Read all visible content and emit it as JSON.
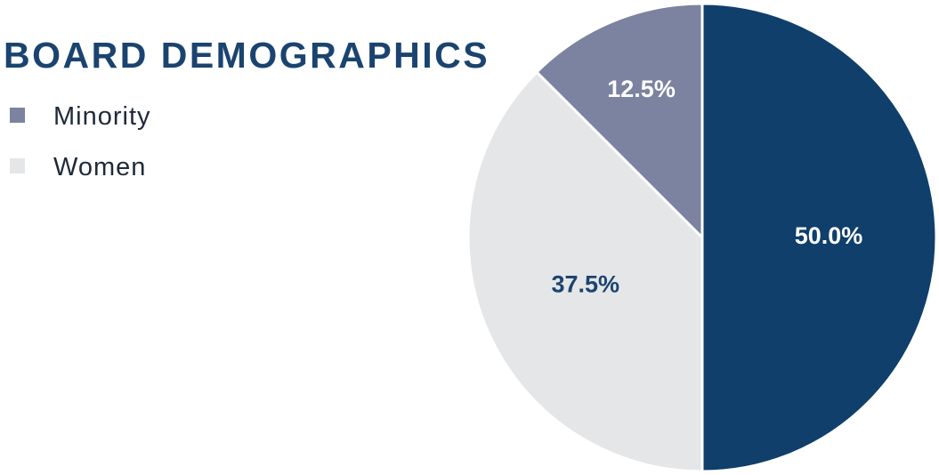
{
  "chart_data": {
    "type": "pie",
    "title": "BOARD DEMOGRAPHICS",
    "categories": [
      null,
      "Women",
      "Minority"
    ],
    "values": [
      50,
      37.5,
      12.5
    ],
    "value_labels": [
      "50.0%",
      "37.5%",
      "12.5%"
    ],
    "colors": [
      "#0f3f6a",
      "#e5e6e8",
      "#7c83a0"
    ]
  }
}
